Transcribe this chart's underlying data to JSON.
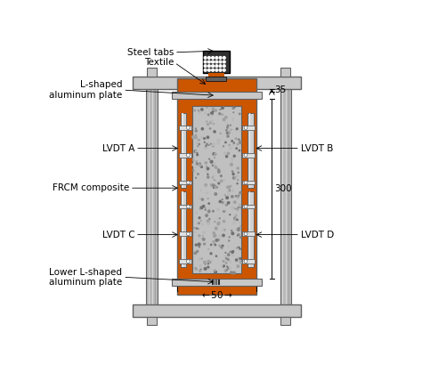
{
  "background_color": "#ffffff",
  "colors": {
    "orange": "#CC5500",
    "mid_gray": "#B0B0B0",
    "dark_gray": "#606060",
    "light_gray": "#C8C8C8",
    "concrete": "#C0C0C0",
    "steel_dark": "#303030",
    "white": "#FFFFFF",
    "black": "#000000",
    "textile_dark": "#282828",
    "lvdt_body": "#C8C8C8",
    "bolt_white": "#E0E0E0",
    "col_gray": "#B8B8B8"
  },
  "labels": {
    "steel_tabs": "Steel tabs",
    "textile": "Textile",
    "l_shaped": "L-shaped\naluminum plate",
    "lvdt_a": "LVDT A",
    "lvdt_b": "LVDT B",
    "lvdt_c": "LVDT C",
    "lvdt_d": "LVDT D",
    "frcm": "FRCM composite",
    "lower_l": "Lower L-shaped\naluminum plate",
    "dim_35": "35",
    "dim_300": "300",
    "dim_50": "50"
  }
}
